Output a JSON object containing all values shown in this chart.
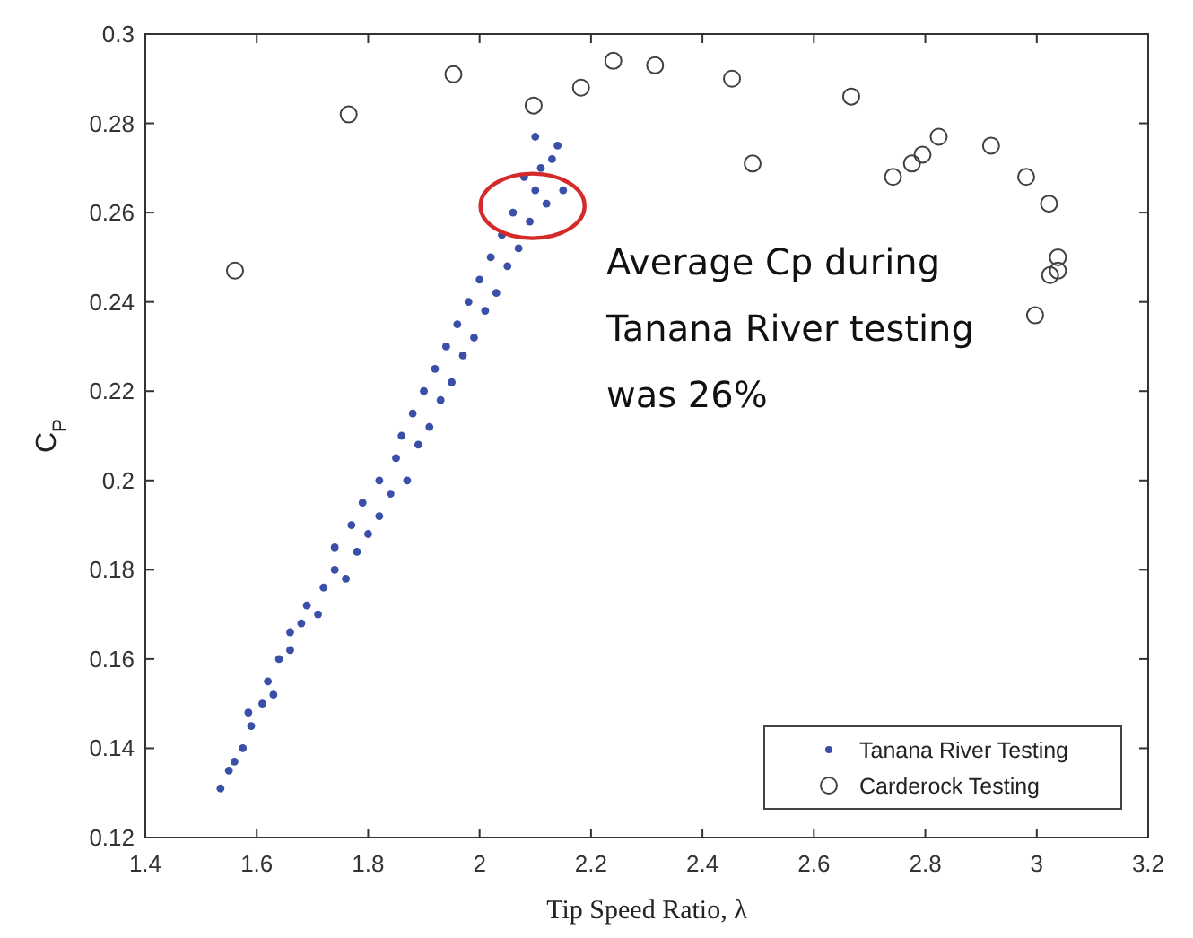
{
  "chart_data": {
    "type": "scatter",
    "xlabel": "Tip Speed Ratio, λ",
    "ylabel": "C$_{P}$",
    "xlim": [
      1.4,
      3.2
    ],
    "xticks": [
      1.4,
      1.6,
      1.8,
      2,
      2.2,
      2.4,
      2.6,
      2.8,
      3,
      3.2
    ],
    "ylim": [
      0.12,
      0.3
    ],
    "yticks": [
      0.12,
      0.14,
      0.16,
      0.18,
      0.2,
      0.22,
      0.24,
      0.26,
      0.28,
      0.3
    ],
    "grid": false,
    "legend": "bottom right",
    "marker": "circle",
    "annotations": [
      "Average Cp during Tanana River testing was 26%"
    ],
    "series": [
      {
        "name": "Tanana River Testing",
        "color": "#3a4fa8",
        "x": [
          1.535,
          1.55,
          1.56,
          1.575,
          1.59,
          1.585,
          1.61,
          1.62,
          1.63,
          1.64,
          1.66,
          1.66,
          1.68,
          1.69,
          1.71,
          1.72,
          1.74,
          1.74,
          1.76,
          1.78,
          1.77,
          1.8,
          1.79,
          1.82,
          1.82,
          1.84,
          1.85,
          1.87,
          1.86,
          1.89,
          1.88,
          1.91,
          1.9,
          1.93,
          1.92,
          1.95,
          1.94,
          1.97,
          1.96,
          1.99,
          1.98,
          2.01,
          2,
          2.03,
          2.02,
          2.05,
          2.04,
          2.07,
          2.06,
          2.09,
          2.1,
          2.12,
          2.08,
          2.11,
          2.1,
          2.13,
          2.14,
          2.15
        ],
        "values": [
          0.131,
          0.135,
          0.137,
          0.14,
          0.145,
          0.148,
          0.15,
          0.155,
          0.152,
          0.16,
          0.162,
          0.166,
          0.168,
          0.172,
          0.17,
          0.176,
          0.18,
          0.185,
          0.178,
          0.184,
          0.19,
          0.188,
          0.195,
          0.192,
          0.2,
          0.197,
          0.205,
          0.2,
          0.21,
          0.208,
          0.215,
          0.212,
          0.22,
          0.218,
          0.225,
          0.222,
          0.23,
          0.228,
          0.235,
          0.232,
          0.24,
          0.238,
          0.245,
          0.242,
          0.25,
          0.248,
          0.255,
          0.252,
          0.26,
          0.258,
          0.265,
          0.262,
          0.268,
          0.27,
          0.277,
          0.272,
          0.275,
          0.265
        ]
      },
      {
        "name": "Carderock Testing",
        "color": "#404040",
        "x": [
          1.561,
          1.765,
          1.953,
          2.097,
          2.182,
          2.24,
          2.315,
          2.453,
          2.49,
          2.667,
          2.742,
          2.776,
          2.795,
          2.824,
          2.918,
          2.981,
          3.022,
          3.038,
          3.038,
          3.024,
          2.997
        ],
        "values": [
          0.247,
          0.282,
          0.291,
          0.284,
          0.288,
          0.294,
          0.293,
          0.29,
          0.271,
          0.286,
          0.268,
          0.271,
          0.273,
          0.277,
          0.275,
          0.268,
          0.262,
          0.25,
          0.247,
          0.246,
          0.237
        ]
      }
    ]
  }
}
